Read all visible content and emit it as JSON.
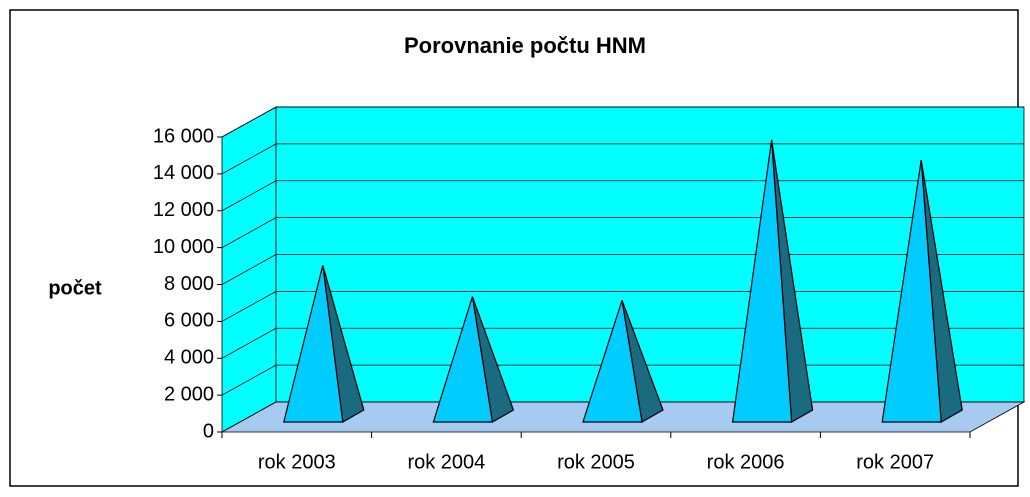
{
  "chart_data": {
    "type": "pyramid3d",
    "title": "Porovnanie počtu HNM",
    "y_label": "počet",
    "categories": [
      "rok 2003",
      "rok 2004",
      "rok 2005",
      "rok 2006",
      "rok 2007"
    ],
    "values": [
      8500,
      6800,
      6600,
      15300,
      14200
    ],
    "color": "#00ccff",
    "side_color": "#1a6a80",
    "wall_color": "#00ffff",
    "floor_color": "#a6caf0",
    "ylim": [
      0,
      16000
    ],
    "yticks": [
      0,
      {
        "value": 2000,
        "label": "2 000"
      },
      {
        "value": 4000,
        "label": "4 000"
      },
      {
        "value": 6000,
        "label": "6 000"
      },
      {
        "value": 8000,
        "label": "8 000"
      },
      {
        "value": 10000,
        "label": "10 000"
      },
      {
        "value": 12000,
        "label": "12 000"
      },
      {
        "value": 14000,
        "label": "14 000"
      },
      {
        "value": 16000,
        "label": "16 000"
      }
    ],
    "grid": true
  }
}
